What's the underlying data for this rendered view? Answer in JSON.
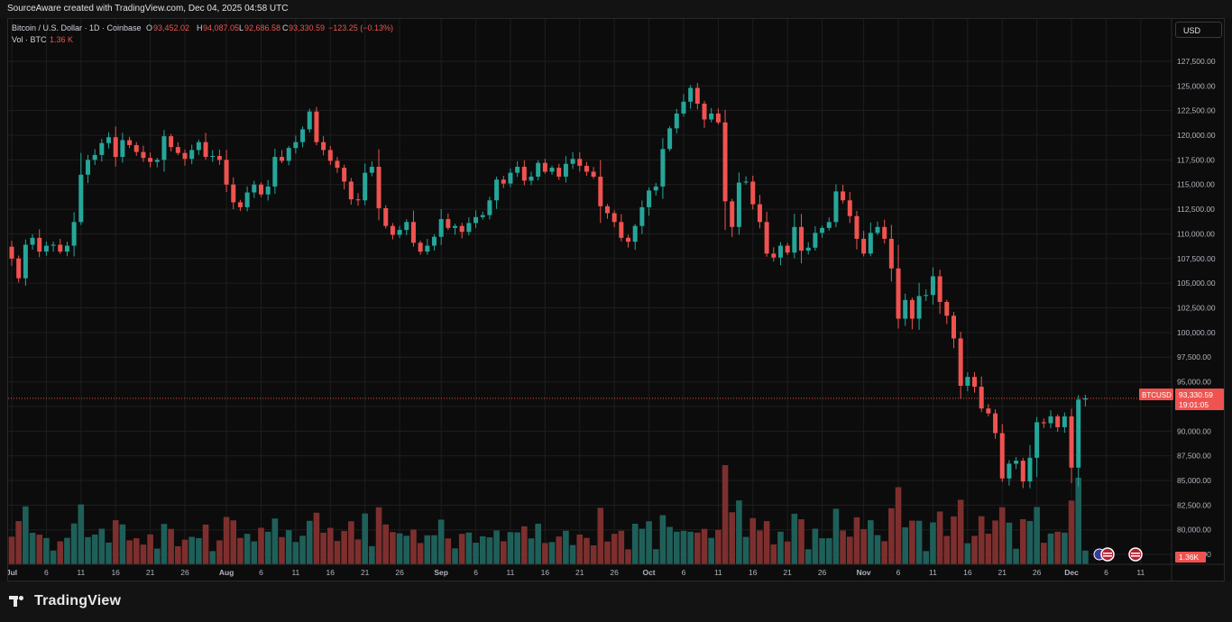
{
  "header": {
    "attribution": "SourceAware created with TradingView.com, Dec 04, 2025 04:58 UTC"
  },
  "legend": {
    "symbol": "Bitcoin / U.S. Dollar · 1D · Coinbase",
    "o_label": "O",
    "o_value": "93,452.02",
    "h_label": "H",
    "h_value": "94,087.05",
    "l_label": "L",
    "l_value": "92,686.58",
    "c_label": "C",
    "c_value": "93,330.59",
    "change": "−123.25 (−0.13%)",
    "vol_label": "Vol · BTC",
    "vol_value": "1.36 K"
  },
  "currency_button": "USD",
  "price_tag": {
    "symbol": "BTCUSD",
    "price": "93,330.59",
    "countdown": "19:01:05"
  },
  "volume_tag": "1.36K",
  "brand": "TradingView",
  "colors": {
    "up": "#26a69a",
    "down": "#ef5350",
    "up_vol": "#1f5f59",
    "down_vol": "#7d2f2e",
    "bg": "#0c0c0c",
    "grid": "#1e1e1e"
  },
  "chart_data": {
    "type": "candlestick",
    "title": "Bitcoin / U.S. Dollar · 1D · Coinbase",
    "ylim": [
      76500,
      128500
    ],
    "y_ticks": [
      77500,
      80000,
      82500,
      85000,
      87500,
      90000,
      92500,
      95000,
      97500,
      100000,
      102500,
      105000,
      107500,
      110000,
      112500,
      115000,
      117500,
      120000,
      122500,
      125000,
      127500
    ],
    "y_tick_labels": [
      "77,500.00",
      "80,000.00",
      "82,500.00",
      "85,000.00",
      "87,500.00",
      "90,000.00",
      "92,500.00",
      "95,000.00",
      "97,500.00",
      "100,000.00",
      "102,500.00",
      "105,000.00",
      "107,500.00",
      "110,000.00",
      "112,500.00",
      "115,000.00",
      "117,500.00",
      "120,000.00",
      "122,500.00",
      "125,000.00",
      "127,500.00"
    ],
    "x_tick_labels": [
      "Jul",
      "6",
      "11",
      "16",
      "21",
      "26",
      "Aug",
      "6",
      "11",
      "16",
      "21",
      "26",
      "Sep",
      "6",
      "11",
      "16",
      "21",
      "26",
      "Oct",
      "6",
      "11",
      "16",
      "21",
      "26",
      "Nov",
      "6",
      "11",
      "16",
      "21",
      "26",
      "Dec",
      "6",
      "11"
    ],
    "x_tick_days": [
      0,
      5,
      10,
      15,
      20,
      25,
      31,
      36,
      41,
      46,
      51,
      56,
      62,
      67,
      72,
      77,
      82,
      87,
      92,
      97,
      102,
      107,
      112,
      117,
      123,
      128,
      133,
      138,
      143,
      148,
      153,
      158,
      163
    ],
    "first_date": "2025-07-01",
    "last_price": 93330.59,
    "closes": [
      107500,
      105500,
      108900,
      109600,
      108200,
      108800,
      108900,
      108200,
      108800,
      111200,
      116000,
      117500,
      118000,
      119200,
      119800,
      117800,
      119500,
      119000,
      118300,
      117700,
      117300,
      117500,
      119900,
      118800,
      118200,
      117600,
      118500,
      119300,
      117800,
      117900,
      117500,
      115000,
      113200,
      112700,
      114200,
      115000,
      114000,
      114800,
      117800,
      117400,
      118700,
      119300,
      120600,
      122400,
      119300,
      118500,
      117400,
      116700,
      115300,
      113500,
      113400,
      116200,
      116800,
      112600,
      110800,
      109900,
      110400,
      111200,
      109100,
      108200,
      108800,
      109700,
      111500,
      110600,
      110800,
      110200,
      111100,
      111700,
      111900,
      113400,
      115500,
      115100,
      116200,
      116800,
      115400,
      115800,
      117200,
      116300,
      116700,
      115800,
      117100,
      117600,
      116900,
      116300,
      115800,
      112800,
      112100,
      111200,
      109600,
      109200,
      110800,
      112700,
      114400,
      114800,
      118600,
      120700,
      122200,
      123400,
      124800,
      123200,
      121600,
      122200,
      121300,
      113300,
      110700,
      115200,
      115300,
      113000,
      111200,
      108000,
      107600,
      108800,
      108100,
      110700,
      108300,
      108600,
      110100,
      110600,
      111200,
      114300,
      113400,
      111800,
      109500,
      108000,
      110100,
      110700,
      109500,
      106500,
      101400,
      103300,
      101400,
      103700,
      103800,
      105700,
      103100,
      101700,
      99400,
      94600,
      95500,
      94500,
      92300,
      91800,
      89800,
      85200,
      86700,
      87000,
      84900,
      87300,
      90900,
      90800,
      91500,
      90400,
      91500,
      86300,
      93200,
      93330.59
    ],
    "volume_scale": "relative"
  }
}
